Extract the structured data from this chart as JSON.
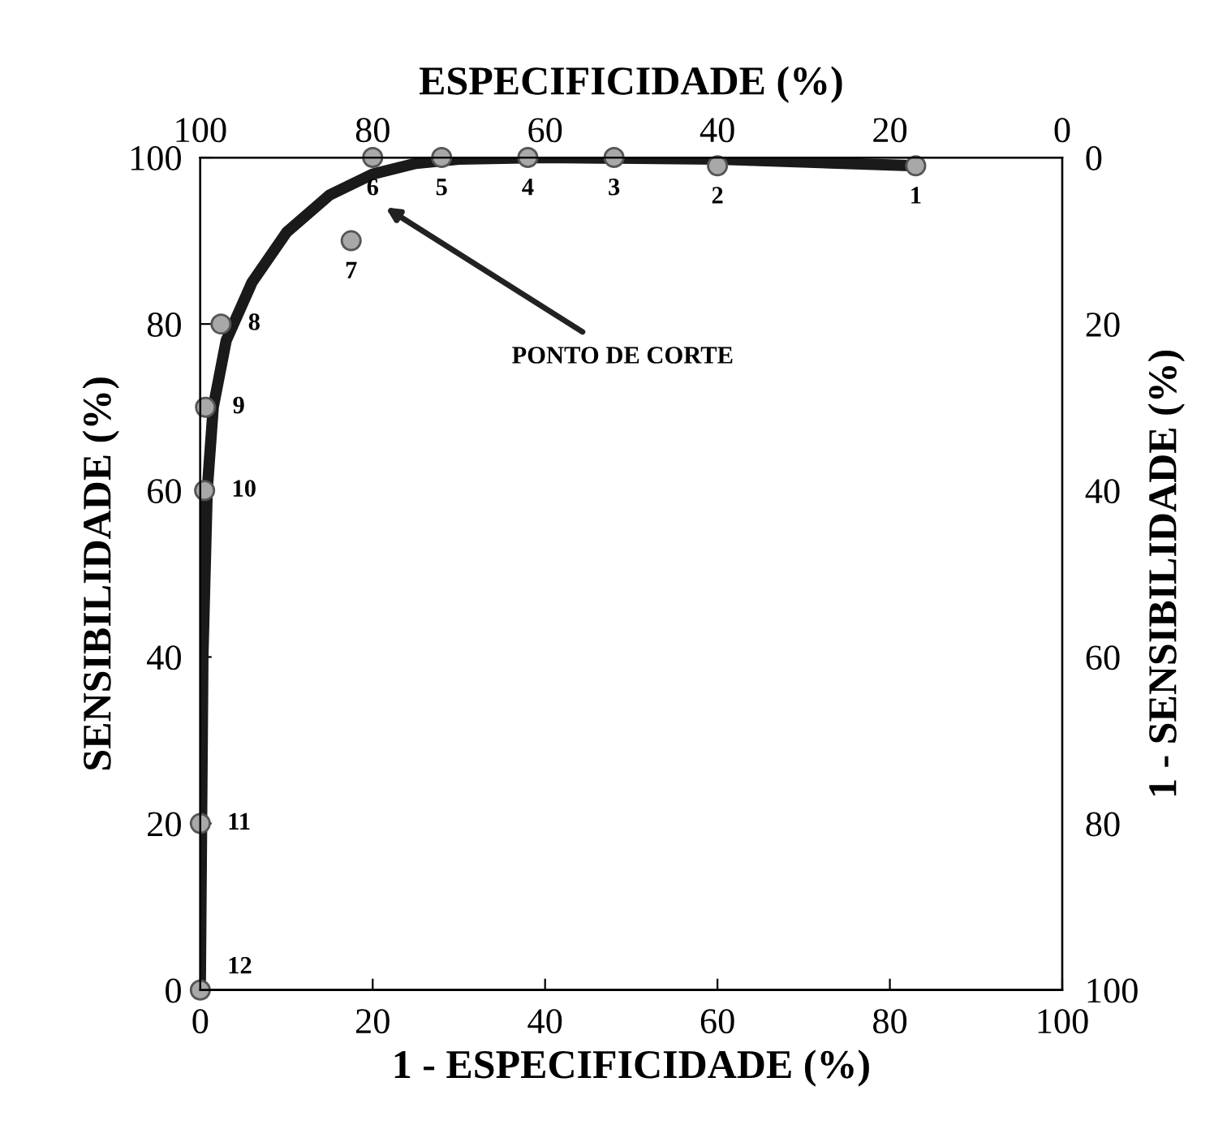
{
  "chart_data": {
    "type": "scatter",
    "xlabel": "1 - ESPECIFICIDADE (%)",
    "ylabel": "SENSIBILIDADE (%)",
    "x2label": "ESPECIFICIDADE (%)",
    "y2label": "1 - SENSIBILIDADE (%)",
    "xlim": [
      0,
      100
    ],
    "xticks": [
      0,
      20,
      40,
      60,
      80,
      100
    ],
    "ylim": [
      0,
      100
    ],
    "yticks": [
      0,
      20,
      40,
      60,
      80,
      100
    ],
    "x2lim": [
      100,
      0
    ],
    "x2ticks": [
      100,
      80,
      60,
      40,
      20,
      0
    ],
    "y2lim": [
      100,
      0
    ],
    "y2ticks": [
      0,
      20,
      40,
      60,
      80,
      100
    ],
    "grid": false,
    "legend": false,
    "marker": "circle",
    "series": [
      {
        "type": "line",
        "color": "#1a1a1a",
        "marker": "none",
        "line_style": "solid",
        "x": [
          0,
          0.3,
          0.8,
          1.5,
          3,
          6,
          10,
          15,
          20,
          25,
          30,
          40,
          60,
          83
        ],
        "values": [
          0,
          40,
          60,
          70,
          78,
          85,
          91,
          95.5,
          98,
          99.3,
          99.8,
          100,
          99.8,
          99
        ]
      },
      {
        "color": "#a8a8a8",
        "x": [
          83,
          60,
          48,
          38,
          28,
          20,
          17.5,
          2.4,
          0.6,
          0.5,
          0,
          0
        ],
        "values": [
          99,
          99,
          100,
          100,
          100,
          100,
          90,
          80,
          70,
          60,
          20,
          0
        ]
      }
    ],
    "annotations": [
      {
        "text": "1",
        "x": 83,
        "y": 99
      },
      {
        "text": "2",
        "x": 60,
        "y": 99
      },
      {
        "text": "3",
        "x": 48,
        "y": 100
      },
      {
        "text": "4",
        "x": 38,
        "y": 100
      },
      {
        "text": "5",
        "x": 28,
        "y": 100
      },
      {
        "text": "6",
        "x": 20,
        "y": 100
      },
      {
        "text": "7",
        "x": 17.5,
        "y": 90
      },
      {
        "text": "8",
        "x": 2.4,
        "y": 80
      },
      {
        "text": "9",
        "x": 0.6,
        "y": 70
      },
      {
        "text": "10",
        "x": 0.5,
        "y": 60
      },
      {
        "text": "11",
        "x": 0,
        "y": 20
      },
      {
        "text": "12",
        "x": 0,
        "y": 0
      },
      "PONTO DE CORTE"
    ]
  }
}
